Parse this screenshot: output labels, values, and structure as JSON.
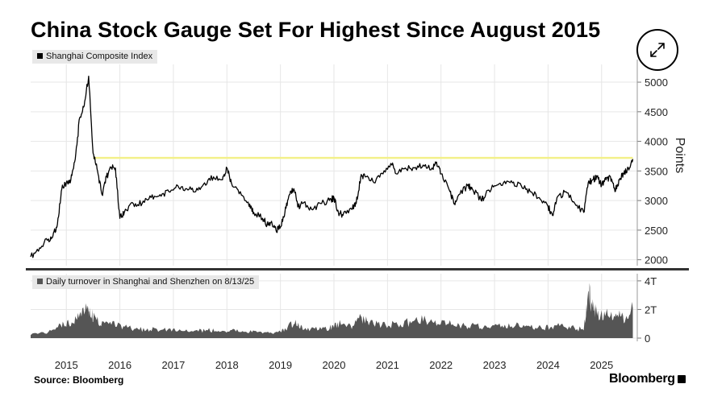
{
  "title": "China Stock Gauge Set For Highest Since August 2015",
  "source": "Source: Bloomberg",
  "brand": "Bloomberg",
  "expand_icon": "expand-arrows-icon",
  "colors": {
    "line": "#000000",
    "volume": "#555555",
    "highlight": "#f3f08a",
    "grid": "#e6e6e6"
  },
  "chart_data": [
    {
      "type": "line",
      "legend": "Shanghai Composite Index",
      "ylabel": "Points",
      "ylim": [
        1900,
        5300
      ],
      "yticks": [
        2000,
        2500,
        3000,
        3500,
        4000,
        4500,
        5000
      ],
      "x_tick_labels": [
        "2015",
        "2016",
        "2017",
        "2018",
        "2019",
        "2020",
        "2021",
        "2022",
        "2023",
        "2024",
        "2025"
      ],
      "reference_line": {
        "value": 3720
      },
      "series": [
        {
          "x": [
            "2014-05",
            "2014-07",
            "2014-09",
            "2014-10",
            "2014-11",
            "2014-12",
            "2015-01",
            "2015-02",
            "2015-03",
            "2015-04",
            "2015-05",
            "2015-06",
            "2015-07",
            "2015-08",
            "2015-09",
            "2015-10",
            "2015-11",
            "2015-12",
            "2016-01",
            "2016-02",
            "2016-04",
            "2016-06",
            "2016-08",
            "2016-10",
            "2016-12",
            "2017-02",
            "2017-04",
            "2017-06",
            "2017-08",
            "2017-10",
            "2017-12",
            "2018-01",
            "2018-02",
            "2018-04",
            "2018-06",
            "2018-07",
            "2018-09",
            "2018-10",
            "2018-11",
            "2018-12",
            "2019-01",
            "2019-02",
            "2019-03",
            "2019-04",
            "2019-05",
            "2019-06",
            "2019-08",
            "2019-10",
            "2019-12",
            "2020-01",
            "2020-02",
            "2020-03",
            "2020-05",
            "2020-06",
            "2020-07",
            "2020-08",
            "2020-10",
            "2020-12",
            "2021-02",
            "2021-03",
            "2021-05",
            "2021-07",
            "2021-09",
            "2021-11",
            "2021-12",
            "2022-01",
            "2022-03",
            "2022-04",
            "2022-05",
            "2022-07",
            "2022-08",
            "2022-10",
            "2022-11",
            "2023-01",
            "2023-03",
            "2023-05",
            "2023-07",
            "2023-09",
            "2023-11",
            "2024-01",
            "2024-02",
            "2024-03",
            "2024-05",
            "2024-07",
            "2024-09",
            "2024-10",
            "2024-11",
            "2024-12",
            "2025-01",
            "2025-02",
            "2025-03",
            "2025-04",
            "2025-05",
            "2025-06",
            "2025-07",
            "2025-08"
          ],
          "values": [
            2050,
            2200,
            2350,
            2400,
            2600,
            3200,
            3300,
            3350,
            3700,
            4400,
            4600,
            5100,
            3800,
            3500,
            3100,
            3400,
            3550,
            3550,
            2700,
            2800,
            2950,
            2950,
            3050,
            3100,
            3150,
            3250,
            3200,
            3150,
            3300,
            3400,
            3350,
            3550,
            3300,
            3150,
            2900,
            2800,
            2700,
            2600,
            2650,
            2500,
            2550,
            2800,
            3100,
            3200,
            2900,
            2950,
            2850,
            2950,
            3000,
            3050,
            2800,
            2750,
            2850,
            2950,
            3400,
            3400,
            3300,
            3450,
            3600,
            3450,
            3550,
            3550,
            3600,
            3550,
            3650,
            3450,
            3150,
            2950,
            3100,
            3250,
            3200,
            3000,
            3100,
            3250,
            3300,
            3300,
            3250,
            3150,
            3050,
            2900,
            2750,
            3050,
            3150,
            2950,
            2800,
            3300,
            3350,
            3400,
            3250,
            3350,
            3400,
            3150,
            3350,
            3450,
            3550,
            3700
          ]
        }
      ]
    },
    {
      "type": "area",
      "legend": "Daily turnover in Shanghai and Shenzhen  on 8/13/25",
      "ylim": [
        0,
        4.5
      ],
      "yticks": [
        0,
        2,
        4
      ],
      "ytick_labels": [
        "0",
        "2T",
        "4T"
      ],
      "series": [
        {
          "x": [
            "2014-05",
            "2014-09",
            "2014-12",
            "2015-02",
            "2015-04",
            "2015-06",
            "2015-07",
            "2015-09",
            "2015-12",
            "2016-03",
            "2016-06",
            "2016-09",
            "2016-12",
            "2017-03",
            "2017-06",
            "2017-09",
            "2017-12",
            "2018-03",
            "2018-06",
            "2018-09",
            "2018-12",
            "2019-02",
            "2019-04",
            "2019-06",
            "2019-09",
            "2019-12",
            "2020-02",
            "2020-05",
            "2020-07",
            "2020-09",
            "2020-12",
            "2021-03",
            "2021-06",
            "2021-09",
            "2021-12",
            "2022-03",
            "2022-06",
            "2022-09",
            "2022-12",
            "2023-03",
            "2023-06",
            "2023-09",
            "2023-12",
            "2024-03",
            "2024-06",
            "2024-09",
            "2024-10",
            "2024-11",
            "2024-12",
            "2025-02",
            "2025-04",
            "2025-06",
            "2025-08"
          ],
          "values": [
            0.3,
            0.45,
            0.9,
            1.1,
            1.8,
            2.0,
            1.5,
            0.9,
            1.0,
            0.7,
            0.6,
            0.6,
            0.55,
            0.5,
            0.5,
            0.55,
            0.5,
            0.5,
            0.45,
            0.35,
            0.35,
            0.6,
            1.1,
            0.7,
            0.65,
            0.7,
            1.0,
            0.8,
            1.5,
            1.0,
            0.9,
            1.0,
            1.1,
            1.3,
            1.1,
            1.0,
            0.9,
            0.8,
            0.75,
            0.9,
            0.85,
            0.75,
            0.75,
            0.85,
            0.75,
            0.6,
            3.4,
            2.0,
            1.8,
            1.7,
            1.6,
            1.4,
            2.1
          ]
        }
      ]
    }
  ]
}
